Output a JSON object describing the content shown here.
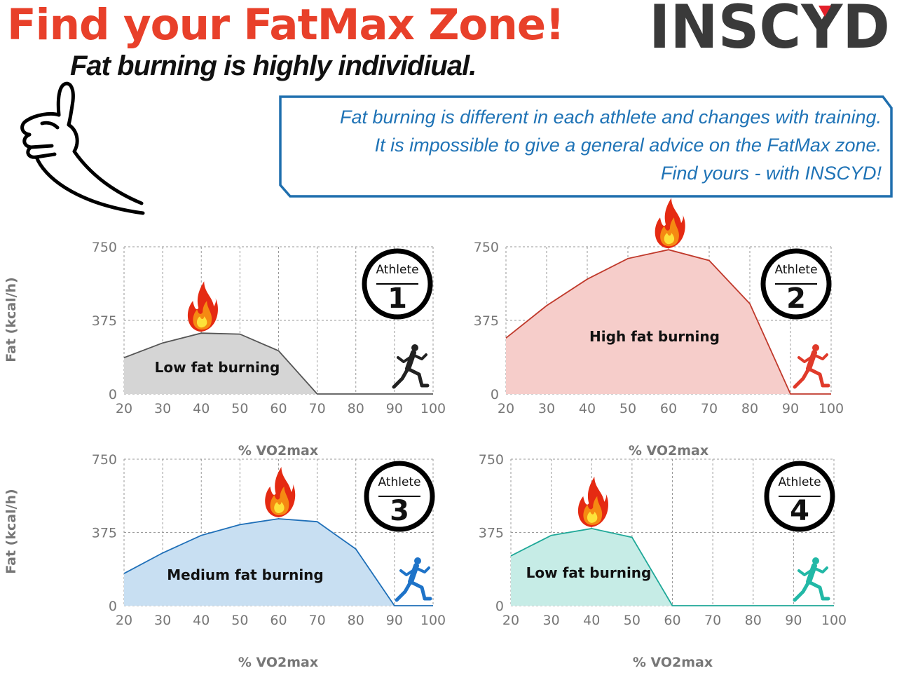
{
  "header": {
    "title": "Find your FatMax Zone!",
    "subtitle": "Fat burning is highly individiual.",
    "logo_text": "INSCYD"
  },
  "callout": {
    "lines": [
      "Fat burning is different in each athlete and changes with training.",
      "It is impossible to give a general advice on the FatMax zone.",
      "Find yours - with INSCYD!"
    ]
  },
  "colors": {
    "title": "#e8402a",
    "callout": "#1f73b6",
    "athlete1": "#555555",
    "athlete2": "#c0392b",
    "athlete3": "#1e6fb8",
    "athlete4": "#1fb5a3"
  },
  "icons": [
    "pointing-hand-icon",
    "flame-icon",
    "runner-icon"
  ],
  "chart_data": [
    {
      "type": "area",
      "badge_label": "Athlete",
      "badge_number": "1",
      "annotation": "Low fat burning",
      "xlabel": "% VO2max",
      "ylabel": "Fat (kcal/h)",
      "xlim": [
        20,
        100
      ],
      "ylim": [
        0,
        750
      ],
      "xticks": [
        20,
        30,
        40,
        50,
        60,
        70,
        80,
        90,
        100
      ],
      "yticks": [
        0,
        375,
        750
      ],
      "grid": true,
      "x": [
        20,
        30,
        40,
        50,
        60,
        70,
        80,
        90,
        100
      ],
      "y": [
        185,
        260,
        310,
        305,
        220,
        0,
        0,
        0,
        0
      ],
      "fatmax_x": 40,
      "line_color": "#555555",
      "fill_color": "#d5d5d5",
      "runner_color": "#222222"
    },
    {
      "type": "area",
      "badge_label": "Athlete",
      "badge_number": "2",
      "annotation": "High fat burning",
      "xlabel": "% VO2max",
      "ylabel": "",
      "xlim": [
        20,
        100
      ],
      "ylim": [
        0,
        750
      ],
      "xticks": [
        20,
        30,
        40,
        50,
        60,
        70,
        80,
        90,
        100
      ],
      "yticks": [
        0,
        375,
        750
      ],
      "grid": true,
      "x": [
        20,
        30,
        40,
        50,
        60,
        70,
        80,
        90,
        100
      ],
      "y": [
        285,
        450,
        585,
        690,
        735,
        680,
        460,
        0,
        0
      ],
      "fatmax_x": 60,
      "line_color": "#c0392b",
      "fill_color": "#f6cdca",
      "runner_color": "#e03a2a"
    },
    {
      "type": "area",
      "badge_label": "Athlete",
      "badge_number": "3",
      "annotation": "Medium fat burning",
      "xlabel": "% VO2max",
      "ylabel": "Fat (kcal/h)",
      "xlim": [
        20,
        100
      ],
      "ylim": [
        0,
        750
      ],
      "xticks": [
        20,
        30,
        40,
        50,
        60,
        70,
        80,
        90,
        100
      ],
      "yticks": [
        0,
        375,
        750
      ],
      "grid": true,
      "x": [
        20,
        30,
        40,
        50,
        60,
        70,
        80,
        90,
        100
      ],
      "y": [
        165,
        270,
        360,
        415,
        445,
        430,
        290,
        0,
        0
      ],
      "fatmax_x": 60,
      "line_color": "#1e6fb8",
      "fill_color": "#c8dff2",
      "runner_color": "#1e73c8"
    },
    {
      "type": "area",
      "badge_label": "Athlete",
      "badge_number": "4",
      "annotation": "Low fat burning",
      "xlabel": "% VO2max",
      "ylabel": "",
      "xlim": [
        20,
        100
      ],
      "ylim": [
        0,
        750
      ],
      "xticks": [
        20,
        30,
        40,
        50,
        60,
        70,
        80,
        90,
        100
      ],
      "yticks": [
        0,
        375,
        750
      ],
      "grid": true,
      "x": [
        20,
        30,
        40,
        50,
        60,
        70,
        80,
        90,
        100
      ],
      "y": [
        255,
        360,
        395,
        350,
        0,
        0,
        0,
        0,
        0
      ],
      "fatmax_x": 40,
      "line_color": "#1fa898",
      "fill_color": "#c6ece6",
      "runner_color": "#22b8a6"
    }
  ]
}
